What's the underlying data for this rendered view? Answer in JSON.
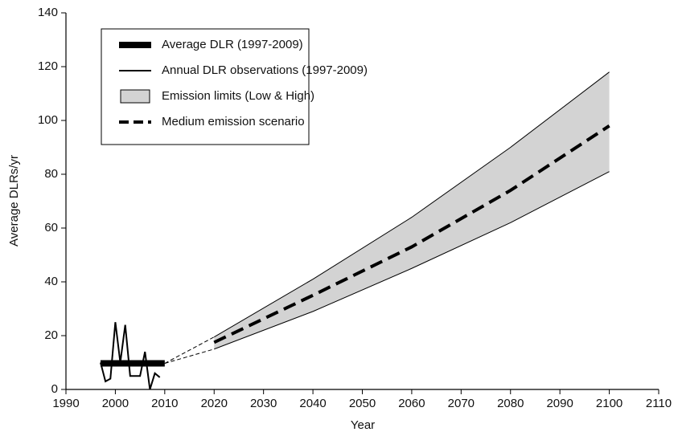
{
  "chart_data": {
    "type": "line",
    "xlabel": "Year",
    "ylabel": "Average DLRs/yr",
    "xlim": [
      1990,
      2110
    ],
    "xticks": [
      1990,
      2000,
      2010,
      2020,
      2030,
      2040,
      2050,
      2060,
      2070,
      2080,
      2090,
      2100,
      2110
    ],
    "ylim": [
      0,
      140
    ],
    "yticks": [
      0,
      20,
      40,
      60,
      80,
      100,
      120,
      140
    ],
    "series": [
      {
        "name": "Average DLR (1997-2009)",
        "style": "thick",
        "color": "#000000",
        "x": [
          1997,
          2010
        ],
        "values": [
          9.7,
          9.7
        ]
      },
      {
        "name": "Annual DLR observations (1997-2009)",
        "style": "thin",
        "color": "#000000",
        "x": [
          1997,
          1998,
          1999,
          2000,
          2001,
          2002,
          2003,
          2004,
          2005,
          2006,
          2007,
          2008,
          2009
        ],
        "values": [
          10,
          3,
          4,
          25,
          10,
          24,
          5,
          5,
          5,
          14,
          0,
          6,
          4.5
        ]
      },
      {
        "name": "Emission limits (Low & High)",
        "style": "band",
        "color": "#d3d3d3",
        "x": [
          2020,
          2040,
          2060,
          2080,
          2100
        ],
        "low": [
          15,
          29,
          45,
          62,
          81
        ],
        "high": [
          19.5,
          41,
          64,
          90,
          118
        ]
      },
      {
        "name": "Medium emission scenario",
        "style": "dashed",
        "color": "#000000",
        "x": [
          2020,
          2040,
          2060,
          2080,
          2100
        ],
        "values": [
          17.5,
          35,
          53,
          74,
          98
        ]
      }
    ]
  }
}
